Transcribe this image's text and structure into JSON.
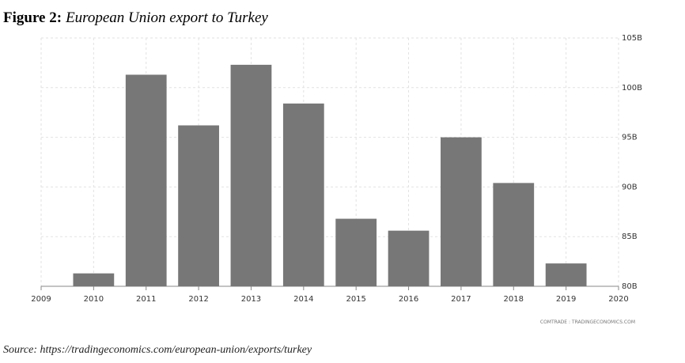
{
  "chart_data": {
    "type": "bar",
    "figure_label": "Figure 2:",
    "title": "European Union export to Turkey",
    "x": [
      2010,
      2011,
      2012,
      2013,
      2014,
      2015,
      2016,
      2017,
      2018,
      2019
    ],
    "values": [
      81.3,
      101.3,
      96.2,
      102.3,
      98.4,
      86.8,
      85.6,
      95.0,
      90.4,
      82.3
    ],
    "color": "#777777",
    "xlim": [
      2009,
      2020
    ],
    "xticks": [
      2009,
      2010,
      2011,
      2012,
      2013,
      2014,
      2015,
      2016,
      2017,
      2018,
      2019,
      2020
    ],
    "ylim": [
      80,
      105
    ],
    "yticks": [
      {
        "value": 80,
        "label": "80B"
      },
      {
        "value": 85,
        "label": "85B"
      },
      {
        "value": 90,
        "label": "90B"
      },
      {
        "value": 95,
        "label": "95B"
      },
      {
        "value": 100,
        "label": "100B"
      },
      {
        "value": 105,
        "label": "105B"
      }
    ],
    "grid": true,
    "credit": "COMTRADE : TRADINGECONOMICS.COM",
    "source": "Source: https://tradingeconomics.com/european-union/exports/turkey"
  }
}
